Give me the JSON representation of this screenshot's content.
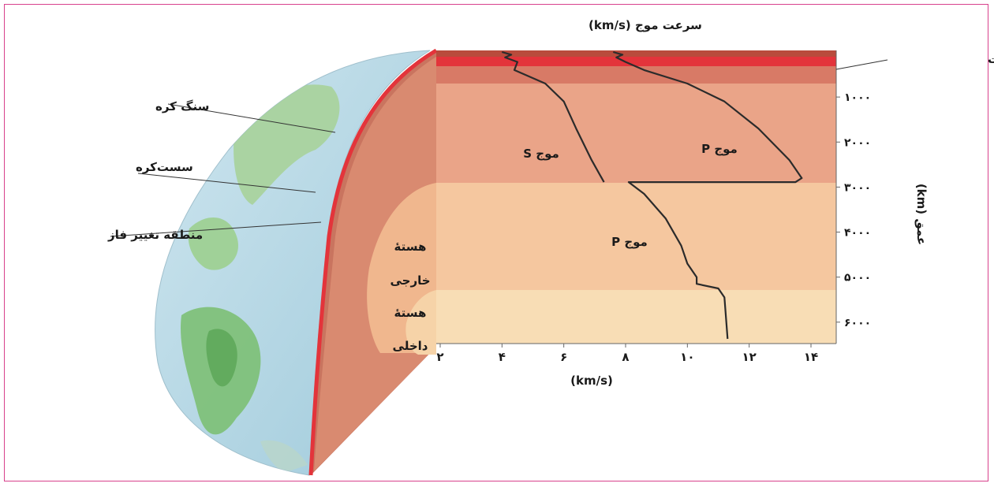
{
  "title": "سرعت موج (km/s)",
  "x_axis_unit": "(km/s)",
  "y_axis_label": "عمق (km)",
  "labels": {
    "low_velocity_zone": "منطقهٔ کم‌سرعت",
    "lithosphere": "سنگ کره",
    "asthenosphere": "سست‌کره",
    "phase_change_zone": "منطقه تغییر فاز",
    "outer_core_line1": "هستهٔ",
    "outer_core_line2": "خارجی",
    "inner_core_line1": "هستهٔ",
    "inner_core_line2": "داخلی",
    "s_wave": "موج S",
    "p_wave_mantle": "موج P",
    "p_wave_core": "موج P"
  },
  "x_ticks": [
    "۲",
    "۴",
    "۶",
    "۸",
    "۱۰",
    "۱۲",
    "۱۴"
  ],
  "y_ticks": [
    "۱۰۰۰",
    "۲۰۰۰",
    "۳۰۰۰",
    "۴۰۰۰",
    "۵۰۰۰",
    "۶۰۰۰"
  ],
  "colors": {
    "frame": "#d8418c",
    "crust_red": "#e3343b",
    "lvz_band": "#d87a66",
    "mantle": "#eaa488",
    "outer_core": "#f5c79f",
    "inner_core": "#f8ddb5",
    "curve": "#2b2b2b"
  },
  "chart_data": {
    "type": "line",
    "x_range": [
      2,
      15
    ],
    "y_range": [
      0,
      6371
    ],
    "y_inverted": true,
    "series": [
      {
        "name": "موج S",
        "points": [
          [
            4.0,
            0
          ],
          [
            4.3,
            60
          ],
          [
            4.1,
            120
          ],
          [
            4.5,
            220
          ],
          [
            4.4,
            400
          ],
          [
            5.4,
            700
          ],
          [
            6.0,
            1100
          ],
          [
            6.4,
            1700
          ],
          [
            6.9,
            2400
          ],
          [
            7.3,
            2890
          ]
        ]
      },
      {
        "name": "موج P",
        "points": [
          [
            7.6,
            0
          ],
          [
            7.9,
            60
          ],
          [
            7.7,
            120
          ],
          [
            8.0,
            220
          ],
          [
            8.6,
            400
          ],
          [
            10.0,
            700
          ],
          [
            11.2,
            1100
          ],
          [
            12.3,
            1700
          ],
          [
            13.3,
            2400
          ],
          [
            13.7,
            2800
          ],
          [
            13.5,
            2890
          ],
          [
            8.1,
            2890
          ],
          [
            8.6,
            3150
          ],
          [
            9.3,
            3700
          ],
          [
            9.8,
            4300
          ],
          [
            10.0,
            4700
          ],
          [
            10.3,
            5000
          ],
          [
            10.3,
            5150
          ],
          [
            11.0,
            5250
          ],
          [
            11.2,
            5450
          ],
          [
            11.3,
            6371
          ]
        ]
      }
    ],
    "layer_boundaries_km": [
      100,
      400,
      2890,
      5150
    ]
  }
}
